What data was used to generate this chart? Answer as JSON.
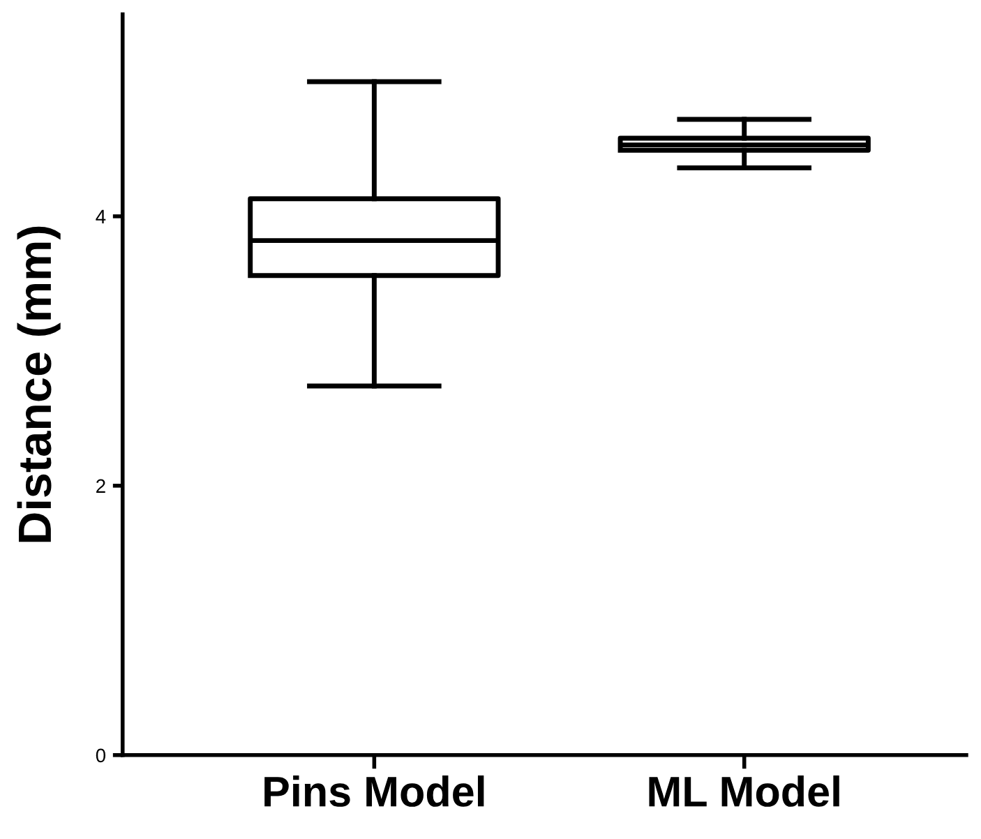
{
  "chart_data": {
    "type": "box",
    "ylabel": "Distance (mm)",
    "categories": [
      "Pins Model",
      "ML Model"
    ],
    "boxes": [
      {
        "low": 2.74,
        "q1": 3.56,
        "median": 3.82,
        "q3": 4.13,
        "high": 5.0
      },
      {
        "low": 4.36,
        "q1": 4.49,
        "median": 4.53,
        "q3": 4.58,
        "high": 4.72
      }
    ],
    "ylim": [
      0,
      5.5
    ],
    "yticks": [
      0,
      2,
      4
    ],
    "grid": false,
    "legend": false
  }
}
